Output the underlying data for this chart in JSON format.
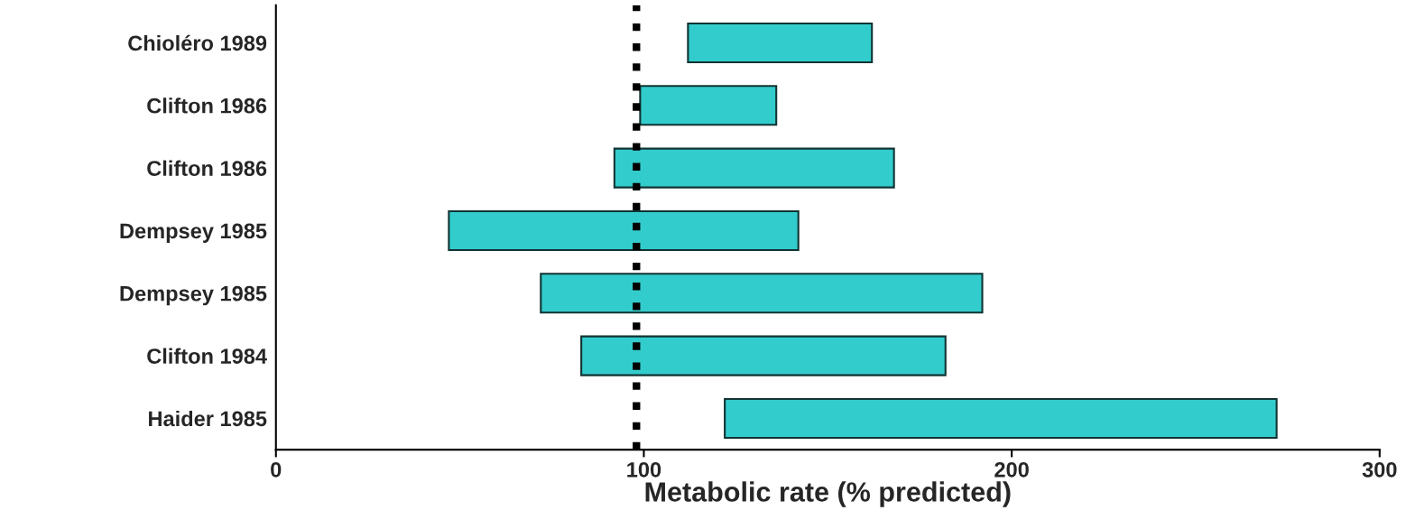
{
  "chart_data": {
    "type": "bar",
    "orientation": "horizontal",
    "xlabel": "Metabolic rate (% predicted)",
    "categories": [
      "Chioléro 1989",
      "Clifton 1986",
      "Clifton 1986",
      "Dempsey 1985",
      "Dempsey 1985",
      "Clifton 1984",
      "Haider 1985"
    ],
    "base": [
      112,
      99,
      92,
      47,
      72,
      83,
      122
    ],
    "values": [
      50,
      37,
      76,
      95,
      120,
      99,
      150
    ],
    "color": "#33cccc",
    "xlim": [
      0,
      300
    ],
    "xticks": [
      0,
      100,
      200,
      300
    ],
    "ref_lines": [
      {
        "axis": "x",
        "value": 98,
        "color": "#000000",
        "line_style": "dotted"
      }
    ],
    "grid": false,
    "legend": false
  }
}
